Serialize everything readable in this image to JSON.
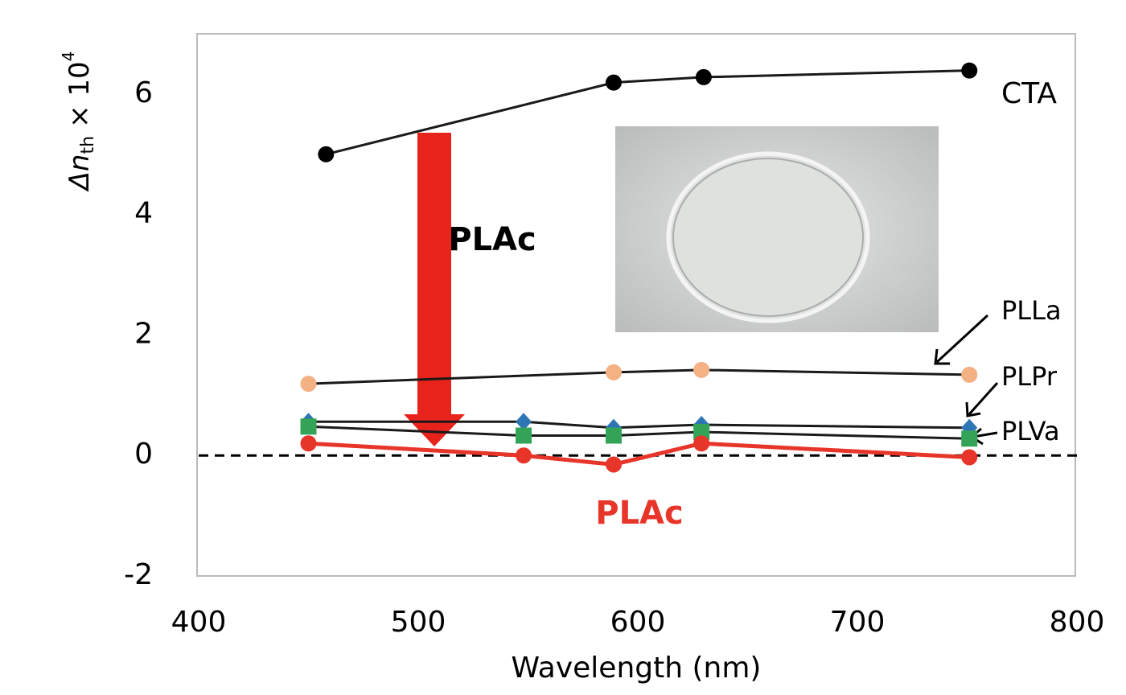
{
  "chart_data": {
    "type": "line",
    "x_label": "Wavelength (nm)",
    "y_label": {
      "symbol": "Δn",
      "subscript": "th",
      "factor": "× 10",
      "exponent": "4"
    },
    "xlim": [
      400,
      800
    ],
    "xticks": [
      400,
      500,
      600,
      700,
      800
    ],
    "ylim": [
      -2,
      7
    ],
    "yticks": [
      -2,
      0,
      2,
      4,
      6
    ],
    "reference_line": 0,
    "inset_label": "PLAc",
    "series": [
      {
        "name": "CTA",
        "color": "#000000",
        "marker": "circle",
        "x": [
          458,
          589,
          630,
          751
        ],
        "values": [
          5.0,
          6.19,
          6.28,
          6.39
        ]
      },
      {
        "name": "PLLa",
        "color": "#f4b183",
        "marker": "circle",
        "x": [
          450,
          589,
          629,
          751
        ],
        "values": [
          1.19,
          1.38,
          1.42,
          1.34
        ]
      },
      {
        "name": "PLPr",
        "color": "#2e75b6",
        "marker": "diamond",
        "x": [
          450,
          548,
          589,
          629,
          751
        ],
        "values": [
          0.56,
          0.56,
          0.46,
          0.51,
          0.46
        ]
      },
      {
        "name": "PLVa",
        "color": "#33a457",
        "marker": "square",
        "x": [
          450,
          548,
          589,
          629,
          751
        ],
        "values": [
          0.48,
          0.33,
          0.33,
          0.39,
          0.28
        ]
      },
      {
        "name": "PLAc",
        "color": "#e8352a",
        "marker": "circle",
        "x": [
          450,
          548,
          589,
          629,
          751
        ],
        "values": [
          0.2,
          0.0,
          -0.15,
          0.2,
          -0.03
        ]
      }
    ]
  }
}
